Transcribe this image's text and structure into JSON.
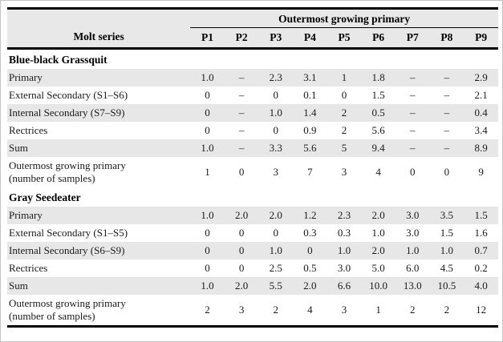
{
  "table": {
    "row_header": "Molt series",
    "col_group_header": "Outermost growing primary",
    "columns": [
      "P1",
      "P2",
      "P3",
      "P4",
      "P5",
      "P6",
      "P7",
      "P8",
      "P9"
    ],
    "sections": [
      {
        "name": "Blue-black Grassquit",
        "rows": [
          {
            "label_lines": [
              "Primary"
            ],
            "values": [
              "1.0",
              "–",
              "2.3",
              "3.1",
              "1",
              "1.8",
              "–",
              "–",
              "2.9"
            ]
          },
          {
            "label_lines": [
              "External Secondary (S1–S6)"
            ],
            "values": [
              "0",
              "–",
              "0",
              "0.1",
              "0",
              "1.5",
              "–",
              "–",
              "2.1"
            ]
          },
          {
            "label_lines": [
              "Internal Secondary (S7–S9)"
            ],
            "values": [
              "0",
              "–",
              "1.0",
              "1.4",
              "2",
              "0.5",
              "–",
              "–",
              "0.4"
            ]
          },
          {
            "label_lines": [
              "Rectrices"
            ],
            "values": [
              "0",
              "–",
              "0",
              "0.9",
              "2",
              "5.6",
              "–",
              "–",
              "3.4"
            ]
          },
          {
            "label_lines": [
              "Sum"
            ],
            "values": [
              "1.0",
              "–",
              "3.3",
              "5.6",
              "5",
              "9.4",
              "–",
              "–",
              "8.9"
            ]
          },
          {
            "label_lines": [
              "Outermost growing primary",
              "(number of samples)"
            ],
            "values": [
              "1",
              "0",
              "3",
              "7",
              "3",
              "4",
              "0",
              "0",
              "9"
            ]
          }
        ]
      },
      {
        "name": "Gray Seedeater",
        "rows": [
          {
            "label_lines": [
              "Primary"
            ],
            "values": [
              "1.0",
              "2.0",
              "2.0",
              "1.2",
              "2.3",
              "2.0",
              "3.0",
              "3.5",
              "1.5"
            ]
          },
          {
            "label_lines": [
              "External Secondary (S1–S5)"
            ],
            "values": [
              "0",
              "0",
              "0",
              "0.3",
              "0.3",
              "1.0",
              "3.0",
              "1.5",
              "1.6"
            ]
          },
          {
            "label_lines": [
              "Internal Secondary (S6–S9)"
            ],
            "values": [
              "0",
              "0",
              "1.0",
              "0",
              "1.0",
              "2.0",
              "1.0",
              "1.0",
              "0.7"
            ]
          },
          {
            "label_lines": [
              "Rectrices"
            ],
            "values": [
              "0",
              "0",
              "2.5",
              "0.5",
              "3.0",
              "5.0",
              "6.0",
              "4.5",
              "0.2"
            ]
          },
          {
            "label_lines": [
              "Sum"
            ],
            "values": [
              "1.0",
              "2.0",
              "5.5",
              "2.0",
              "6.6",
              "10.0",
              "13.0",
              "10.5",
              "4.0"
            ]
          },
          {
            "label_lines": [
              "Outermost growing primary",
              "(number of samples)"
            ],
            "values": [
              "2",
              "3",
              "2",
              "4",
              "3",
              "1",
              "2",
              "2",
              "12"
            ]
          }
        ]
      }
    ],
    "colors": {
      "row_shade": "#e7e7e7",
      "header_bg": "#e8e8e8",
      "line": "#000000"
    }
  }
}
